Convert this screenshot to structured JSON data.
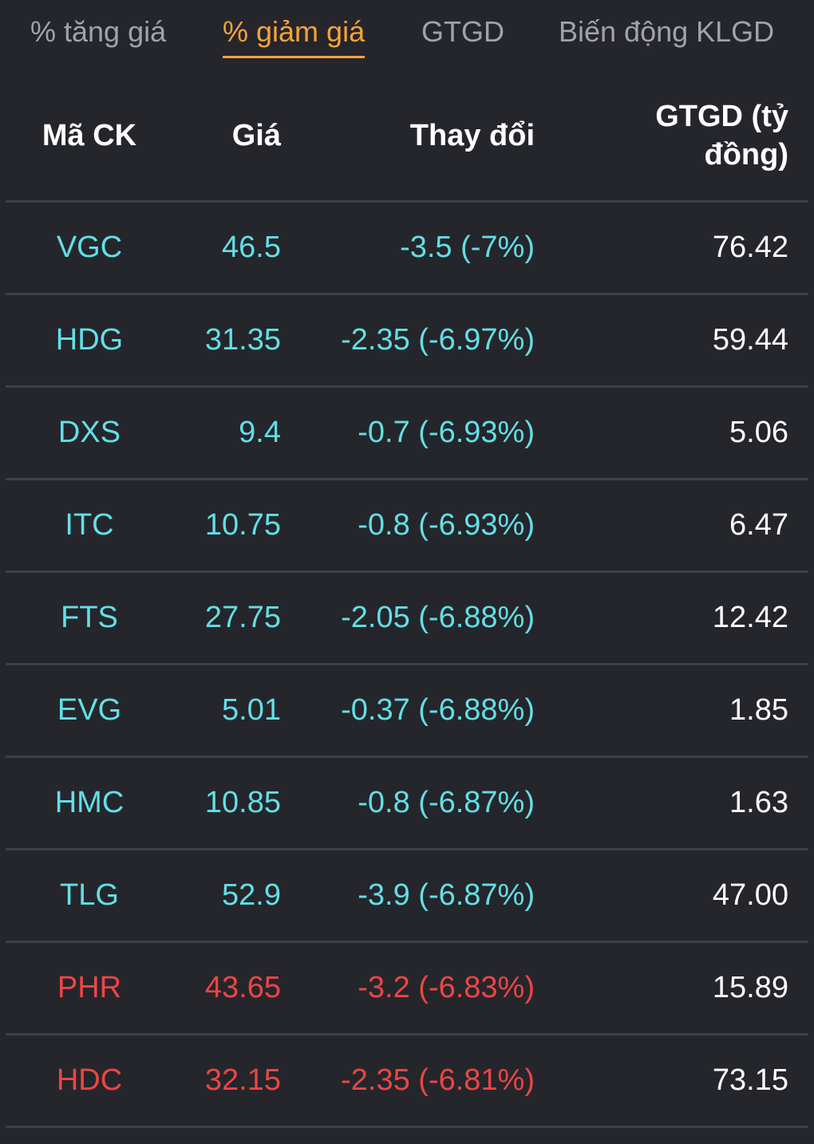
{
  "tabs": [
    {
      "label": "% tăng giá",
      "active": false
    },
    {
      "label": "% giảm giá",
      "active": true
    },
    {
      "label": "GTGD",
      "active": false
    },
    {
      "label": "Biến động KLGD",
      "active": false
    }
  ],
  "table": {
    "headers": {
      "symbol": "Mã CK",
      "price": "Giá",
      "change": "Thay đổi",
      "value": "GTGD (tỷ đồng)"
    },
    "rows": [
      {
        "symbol": "VGC",
        "price": "46.5",
        "change": "-3.5 (-7%)",
        "value": "76.42",
        "status": "floor"
      },
      {
        "symbol": "HDG",
        "price": "31.35",
        "change": "-2.35 (-6.97%)",
        "value": "59.44",
        "status": "floor"
      },
      {
        "symbol": "DXS",
        "price": "9.4",
        "change": "-0.7 (-6.93%)",
        "value": "5.06",
        "status": "floor"
      },
      {
        "symbol": "ITC",
        "price": "10.75",
        "change": "-0.8 (-6.93%)",
        "value": "6.47",
        "status": "floor"
      },
      {
        "symbol": "FTS",
        "price": "27.75",
        "change": "-2.05 (-6.88%)",
        "value": "12.42",
        "status": "floor"
      },
      {
        "symbol": "EVG",
        "price": "5.01",
        "change": "-0.37 (-6.88%)",
        "value": "1.85",
        "status": "floor"
      },
      {
        "symbol": "HMC",
        "price": "10.85",
        "change": "-0.8 (-6.87%)",
        "value": "1.63",
        "status": "floor"
      },
      {
        "symbol": "TLG",
        "price": "52.9",
        "change": "-3.9 (-6.87%)",
        "value": "47.00",
        "status": "floor"
      },
      {
        "symbol": "PHR",
        "price": "43.65",
        "change": "-3.2 (-6.83%)",
        "value": "15.89",
        "status": "down"
      },
      {
        "symbol": "HDC",
        "price": "32.15",
        "change": "-2.35 (-6.81%)",
        "value": "73.15",
        "status": "down"
      }
    ]
  },
  "colors": {
    "background": "#25262b",
    "active_tab": "#f5a33b",
    "floor_price": "#62dfe6",
    "down_price": "#ec4545",
    "divider": "#3f4046"
  }
}
